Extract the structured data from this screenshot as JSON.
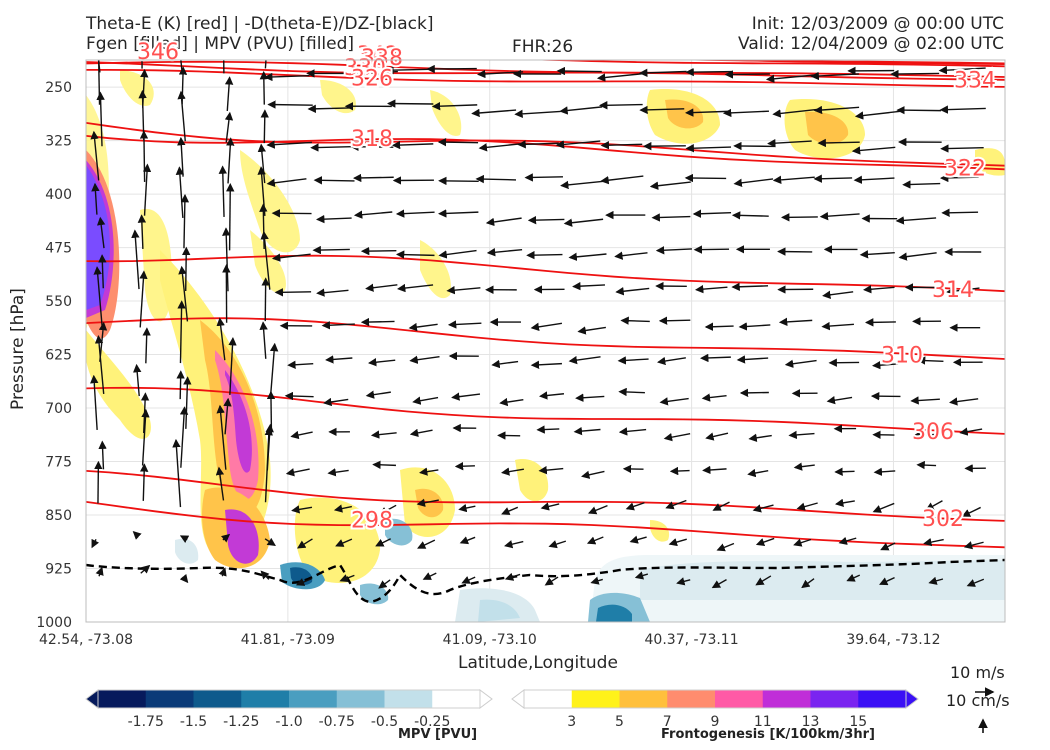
{
  "header": {
    "line1_left": "Theta-E (K) [red] | -D(theta-E)/DZ-[black]",
    "line2_left": "Fgen [filled] | MPV (PVU) [filled]",
    "fhr": "FHR:26",
    "init": "Init: 12/03/2009 @ 00:00 UTC",
    "valid": "Valid: 12/04/2009 @ 02:00 UTC"
  },
  "chart_data": {
    "type": "cross-section",
    "xlabel": "Latitude,Longitude",
    "ylabel": "Pressure [hPa]",
    "x_ticks": [
      "42.54, -73.08",
      "41.81, -73.09",
      "41.09, -73.10",
      "40.37, -73.11",
      "39.64, -73.12"
    ],
    "y_ticks": [
      250,
      325,
      400,
      475,
      550,
      625,
      700,
      775,
      850,
      925,
      1000
    ],
    "ylim": [
      1000,
      212
    ],
    "grid": true,
    "theta_e_contours": [
      {
        "label": "346",
        "level": 229
      },
      {
        "label": "342",
        "level": 228
      },
      {
        "label": "338",
        "level": 232
      },
      {
        "label": "330",
        "level": 247
      },
      {
        "label": "326",
        "level": 261
      },
      {
        "label": "334",
        "level": 251
      },
      {
        "label": "318",
        "level": 335
      },
      {
        "label": "322",
        "level": 340
      },
      {
        "label": "314",
        "level": 511
      },
      {
        "label": "310",
        "level": 606
      },
      {
        "label": "306",
        "level": 711
      },
      {
        "label": "302",
        "level": 833
      },
      {
        "label": "298",
        "level": 870
      }
    ],
    "stability_contour": {
      "name": "-D(theta-E)/DZ",
      "color": "#000000",
      "style": "dashed",
      "approx_level_hPa": 930
    },
    "mpv_colorbar": {
      "label": "MPV [PVU]",
      "ticks": [
        "-1.75",
        "-1.5",
        "-1.25",
        "-1.0",
        "-0.75",
        "-0.5",
        "-0.25"
      ],
      "colors": [
        "#061a5c",
        "#0a3a78",
        "#0e5a8c",
        "#1f7ea8",
        "#4a9ec0",
        "#86c0d6",
        "#c2e0ea",
        "#ffffff"
      ]
    },
    "fgen_colorbar": {
      "label": "Frontogenesis [K/100km/3hr]",
      "ticks": [
        "3",
        "5",
        "7",
        "9",
        "11",
        "13",
        "15"
      ],
      "colors": [
        "#ffffff",
        "#fff21a",
        "#ffc03c",
        "#ff8c6e",
        "#ff5aa6",
        "#c02ed8",
        "#7a24f0",
        "#3a10f5"
      ]
    },
    "wind_reference": {
      "horizontal": "10 m/s",
      "vertical": "10 cm/s"
    }
  }
}
